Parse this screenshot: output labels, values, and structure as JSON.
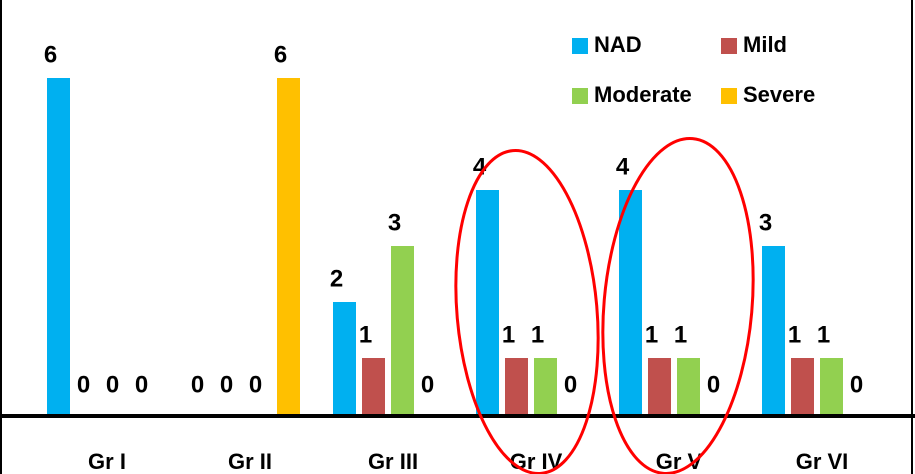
{
  "chart_data": {
    "type": "bar",
    "categories": [
      "Gr I",
      "Gr II",
      "Gr III",
      "Gr IV",
      "Gr V",
      "Gr VI"
    ],
    "series": [
      {
        "name": "NAD",
        "color": "#00b0f0",
        "values": [
          6,
          0,
          2,
          4,
          4,
          3
        ]
      },
      {
        "name": "Mild",
        "color": "#c0504d",
        "values": [
          0,
          0,
          1,
          1,
          1,
          1
        ]
      },
      {
        "name": "Moderate",
        "color": "#92d050",
        "values": [
          0,
          0,
          3,
          1,
          1,
          1
        ]
      },
      {
        "name": "Severe",
        "color": "#ffc000",
        "values": [
          0,
          6,
          0,
          0,
          0,
          0
        ]
      }
    ],
    "legend": "top-right"
  }
}
